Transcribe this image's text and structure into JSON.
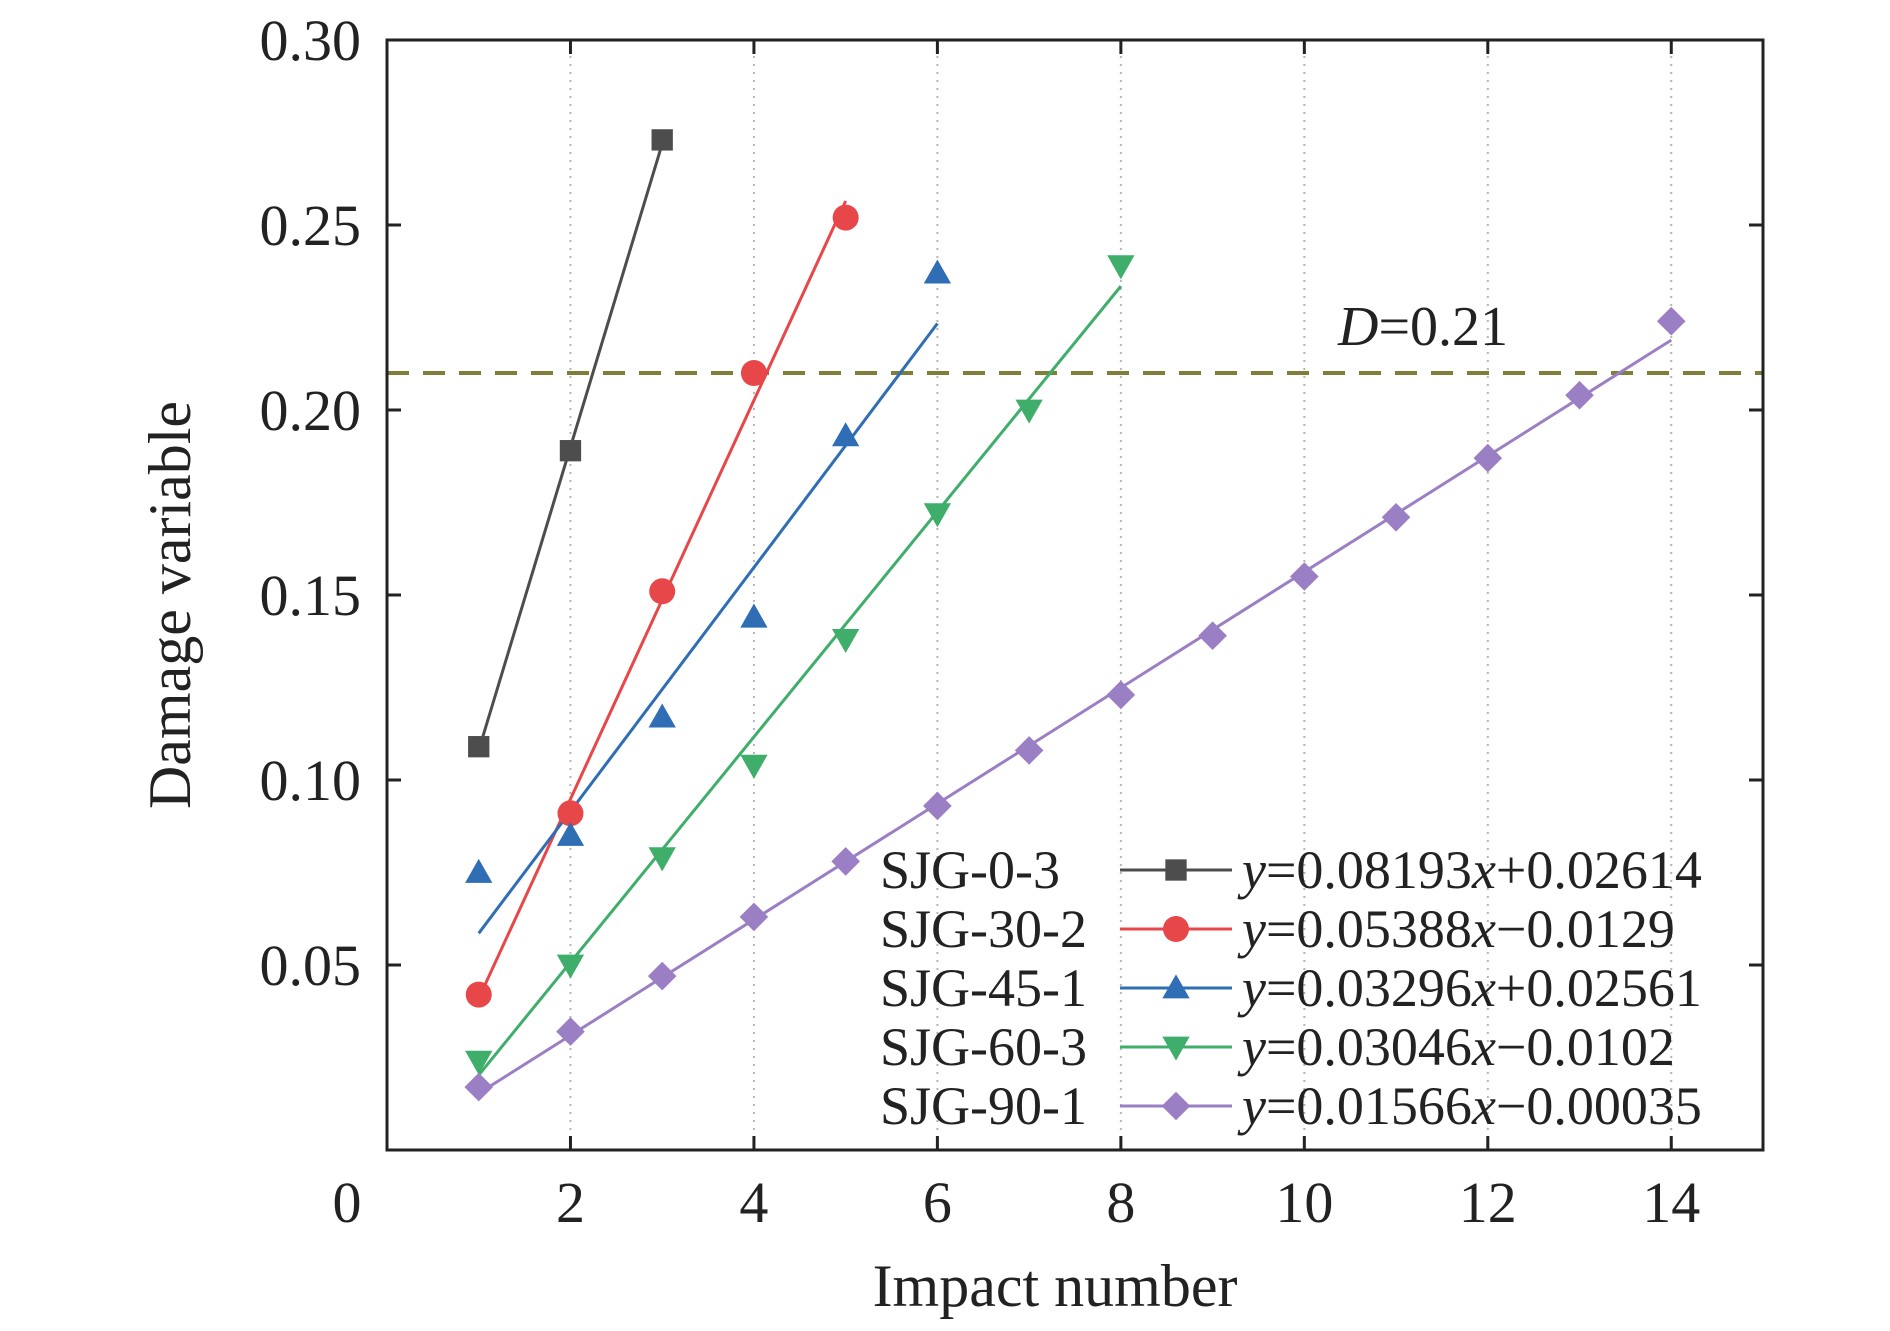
{
  "chart_data": {
    "type": "scatter",
    "xlabel": "Impact number",
    "ylabel": "Damage variable",
    "xlim": [
      0,
      15
    ],
    "ylim": [
      0,
      0.3
    ],
    "x_ticks": [
      {
        "value": 0,
        "label": "0"
      },
      {
        "value": 2,
        "label": "2"
      },
      {
        "value": 4,
        "label": "4"
      },
      {
        "value": 6,
        "label": "6"
      },
      {
        "value": 8,
        "label": "8"
      },
      {
        "value": 10,
        "label": "10"
      },
      {
        "value": 12,
        "label": "12"
      },
      {
        "value": 14,
        "label": "14"
      }
    ],
    "y_ticks": [
      {
        "value": 0.05,
        "label": "0.05"
      },
      {
        "value": 0.1,
        "label": "0.10"
      },
      {
        "value": 0.15,
        "label": "0.15"
      },
      {
        "value": 0.2,
        "label": "0.20"
      },
      {
        "value": 0.25,
        "label": "0.25"
      },
      {
        "value": 0.3,
        "label": "0.30"
      }
    ],
    "vertical_grid": true,
    "vertical_grid_at": [
      2,
      4,
      6,
      8,
      10,
      12,
      14
    ],
    "legend_position": "bottom-right",
    "threshold": {
      "y": 0.21,
      "label_var": "D",
      "label_value": "=0.21",
      "color": "#7f7f3a",
      "style": "dashed"
    },
    "series": [
      {
        "name": "SJG-0-3",
        "color": "#4d4d4d",
        "marker": "square",
        "x": [
          1,
          2,
          3
        ],
        "y": [
          0.109,
          0.189,
          0.273
        ],
        "fit": {
          "slope": 0.08193,
          "intercept": 0.02614,
          "x_range": [
            1,
            3
          ],
          "label_parts": [
            "y",
            "=0.08193",
            "x",
            "+0.02614"
          ]
        }
      },
      {
        "name": "SJG-30-2",
        "color": "#e8474a",
        "marker": "circle",
        "x": [
          1,
          2,
          3,
          4,
          5
        ],
        "y": [
          0.042,
          0.091,
          0.151,
          0.21,
          0.252
        ],
        "fit": {
          "slope": 0.05388,
          "intercept": -0.0129,
          "x_range": [
            1,
            5
          ],
          "label_parts": [
            "y",
            "=0.05388",
            "x",
            "−0.0129"
          ]
        }
      },
      {
        "name": "SJG-45-1",
        "color": "#2f6db5",
        "marker": "triangle-up",
        "x": [
          1,
          2,
          3,
          4,
          5,
          6
        ],
        "y": [
          0.075,
          0.085,
          0.117,
          0.144,
          0.193,
          0.237
        ],
        "fit": {
          "slope": 0.03296,
          "intercept": 0.02561,
          "x_range": [
            1,
            6
          ],
          "label_parts": [
            "y",
            "=0.03296",
            "x",
            "+0.02561"
          ]
        }
      },
      {
        "name": "SJG-60-3",
        "color": "#3fae6b",
        "marker": "triangle-down",
        "x": [
          1,
          2,
          3,
          4,
          5,
          6,
          7,
          8
        ],
        "y": [
          0.024,
          0.05,
          0.079,
          0.104,
          0.138,
          0.172,
          0.2,
          0.239
        ],
        "fit": {
          "slope": 0.03046,
          "intercept": -0.0102,
          "x_range": [
            1,
            8
          ],
          "label_parts": [
            "y",
            "=0.03046",
            "x",
            "−0.0102"
          ]
        }
      },
      {
        "name": "SJG-90-1",
        "color": "#9b7fc4",
        "marker": "diamond",
        "x": [
          1,
          2,
          3,
          4,
          5,
          6,
          7,
          8,
          9,
          10,
          11,
          12,
          13,
          14
        ],
        "y": [
          0.017,
          0.032,
          0.047,
          0.063,
          0.078,
          0.093,
          0.108,
          0.123,
          0.139,
          0.155,
          0.171,
          0.187,
          0.204,
          0.224
        ],
        "fit": {
          "slope": 0.01566,
          "intercept": -0.00035,
          "x_range": [
            1,
            14
          ],
          "label_parts": [
            "y",
            "=0.01566",
            "x",
            "−0.00035"
          ]
        }
      }
    ]
  }
}
